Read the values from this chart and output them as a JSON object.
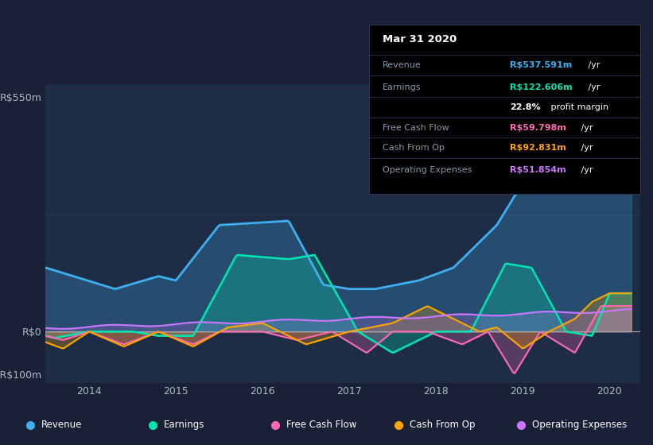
{
  "bg_color": "#1a2035",
  "plot_bg_color": "#1e2d45",
  "grid_color": "#2a3a55",
  "zero_line_color": "#cccccc",
  "revenue_color": "#3eb0ef",
  "earnings_color": "#00e5b0",
  "fcf_color": "#ff69b4",
  "cashfromop_color": "#ffa500",
  "opex_color": "#cc77ff",
  "legend_items": [
    {
      "label": "Revenue",
      "color": "#3eb0ef"
    },
    {
      "label": "Earnings",
      "color": "#00e5b0"
    },
    {
      "label": "Free Cash Flow",
      "color": "#ff69b4"
    },
    {
      "label": "Cash From Op",
      "color": "#ffa500"
    },
    {
      "label": "Operating Expenses",
      "color": "#cc77ff"
    }
  ],
  "info_title": "Mar 31 2020",
  "info_rows": [
    {
      "label": "Revenue",
      "value": "R$537.591m",
      "value_color": "#3eb0ef",
      "suffix": " /yr"
    },
    {
      "label": "Earnings",
      "value": "R$122.606m",
      "value_color": "#00e5b0",
      "suffix": " /yr"
    },
    {
      "label": "",
      "value": "22.8%",
      "value_color": "#ffffff",
      "suffix": " profit margin"
    },
    {
      "label": "Free Cash Flow",
      "value": "R$59.798m",
      "value_color": "#ff69b4",
      "suffix": " /yr"
    },
    {
      "label": "Cash From Op",
      "value": "R$92.831m",
      "value_color": "#ffa500",
      "suffix": " /yr"
    },
    {
      "label": "Operating Expenses",
      "value": "R$51.854m",
      "value_color": "#cc77ff",
      "suffix": " /yr"
    }
  ]
}
